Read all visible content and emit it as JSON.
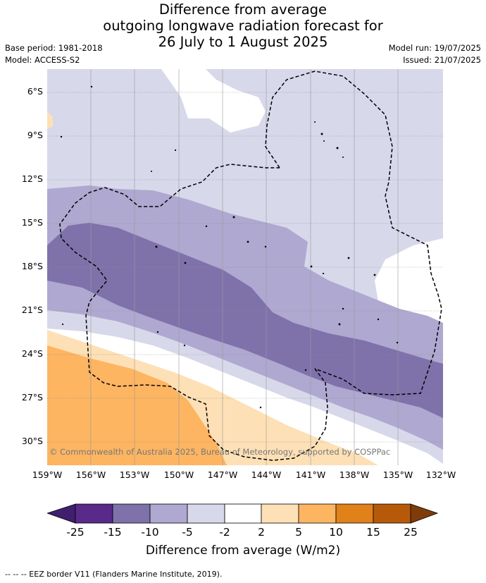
{
  "title_lines": [
    "Difference from average",
    "outgoing longwave radiation forecast for",
    "26 July to 1 August 2025"
  ],
  "base_period": "Base period: 1981-2018",
  "model": "Model: ACCESS-S2",
  "model_run": "Model run: 19/07/2025",
  "issued": "Issued: 21/07/2025",
  "copyright": "© Commonwealth of Australia 2025, Bureau of Meteorology, supported by COSPPac",
  "lat_labels": [
    "6°S",
    "9°S",
    "12°S",
    "15°S",
    "18°S",
    "21°S",
    "24°S",
    "27°S",
    "30°S"
  ],
  "lon_labels": [
    "159°W",
    "156°W",
    "153°W",
    "150°W",
    "147°W",
    "144°W",
    "141°W",
    "138°W",
    "135°W",
    "132°W"
  ],
  "colorbar": {
    "ticks": [
      "-25",
      "-15",
      "-10",
      "-5",
      "-2",
      "2",
      "5",
      "10",
      "15",
      "25"
    ],
    "colors": [
      "#3f1f6e",
      "#5a2a8a",
      "#7f72ab",
      "#afa8d0",
      "#d8d8eb",
      "#ffffff",
      "#fde0b6",
      "#fdb562",
      "#e0811a",
      "#b65a0a",
      "#7f3c0a"
    ],
    "label": "Difference from average (W/m2)"
  },
  "footer": "--  --  -- EEZ border V11 (Flanders Marine Institute, 2019)."
}
